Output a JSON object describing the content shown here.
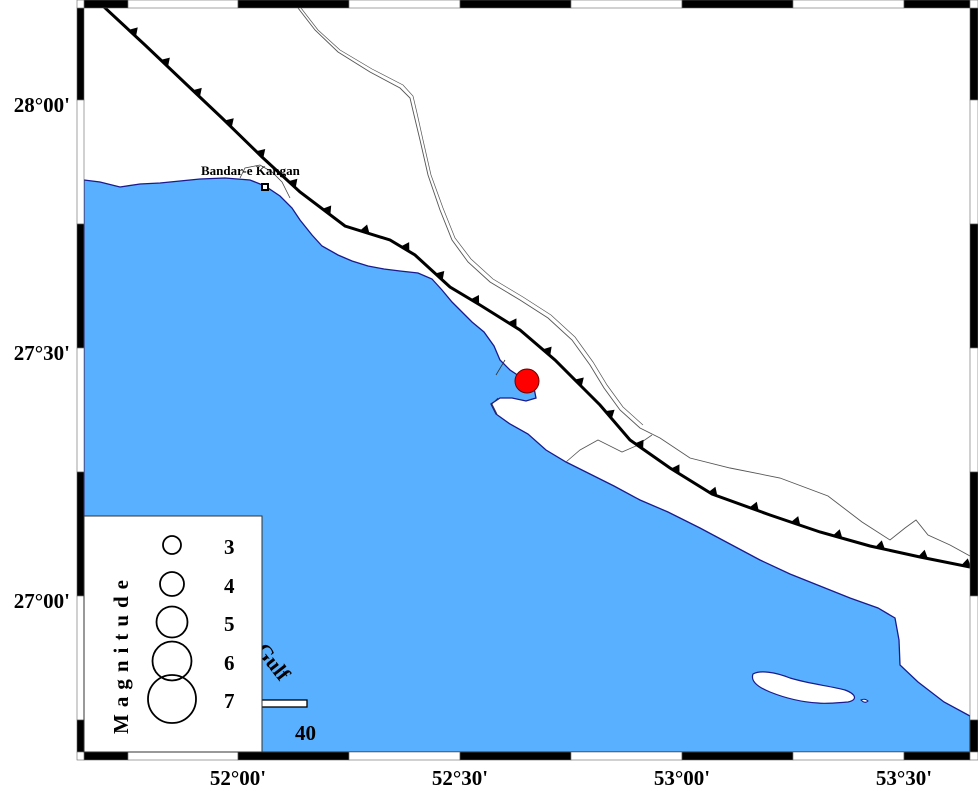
{
  "map": {
    "colors": {
      "sea": "#58b0fe",
      "coast": "#1a1a8c",
      "land": "#ffffff",
      "fault": "#000000",
      "event": "#ff0000",
      "roads": "#555555"
    },
    "latitude_labels": [
      "28°00'",
      "27°30'",
      "27°00'"
    ],
    "longitude_labels": [
      "52°00'",
      "52°30'",
      "53°00'",
      "53°30'"
    ],
    "place": {
      "name": "Bandar-e Kangan",
      "marker": "square"
    },
    "water_label": "Gulf",
    "scale_bar": {
      "label": "40"
    },
    "event": {
      "symbol": "circle",
      "lat": "27°26'",
      "lon": "52°39'"
    },
    "legend": {
      "title": "Magnitude",
      "entries": [
        {
          "label": "3"
        },
        {
          "label": "4"
        },
        {
          "label": "5"
        },
        {
          "label": "6"
        },
        {
          "label": "7"
        }
      ]
    }
  }
}
